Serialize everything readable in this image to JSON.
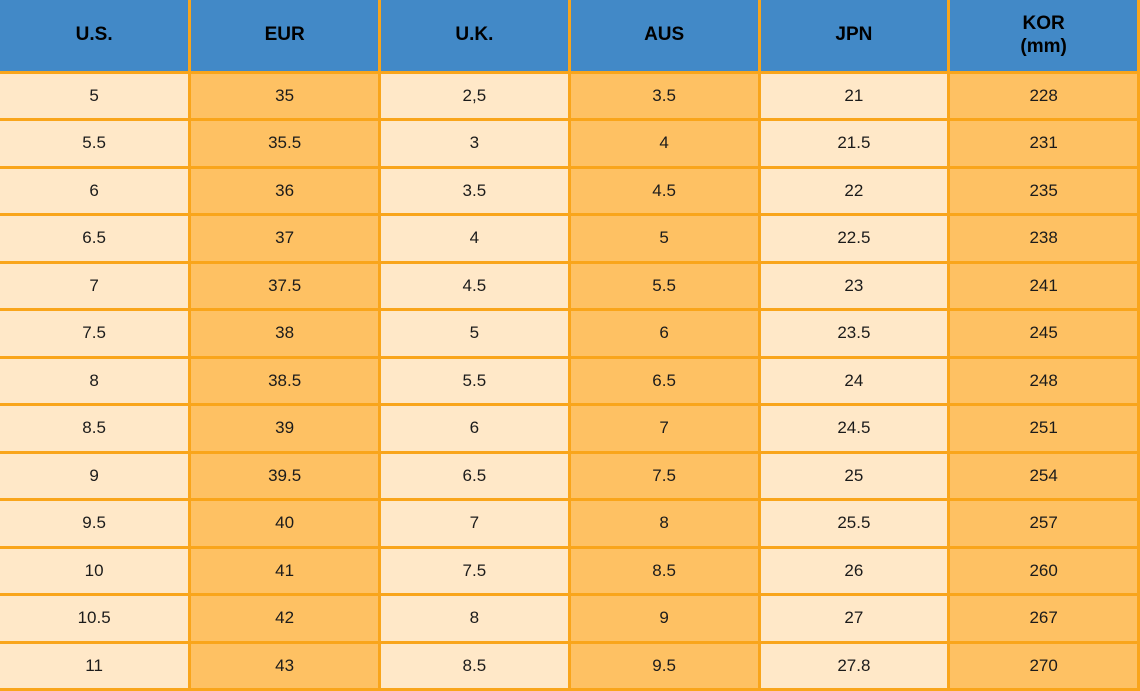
{
  "colors": {
    "header_bg": "#4289C7",
    "header_text": "#000000",
    "cell_light": "#FFE8C8",
    "cell_orange": "#FEC163",
    "grid_border": "#F9A51B",
    "cell_text": "#1B1B1B"
  },
  "chart_data": {
    "type": "table",
    "columns": [
      {
        "key": "us",
        "label": "U.S.",
        "sub": ""
      },
      {
        "key": "eur",
        "label": "EUR",
        "sub": ""
      },
      {
        "key": "uk",
        "label": "U.K.",
        "sub": ""
      },
      {
        "key": "aus",
        "label": "AUS",
        "sub": ""
      },
      {
        "key": "jpn",
        "label": "JPN",
        "sub": ""
      },
      {
        "key": "kor",
        "label": "KOR",
        "sub": "(mm)"
      }
    ],
    "column_styles": [
      "light",
      "orange",
      "light",
      "orange",
      "light",
      "orange"
    ],
    "rows": [
      [
        "5",
        "35",
        "2,5",
        "3.5",
        "21",
        "228"
      ],
      [
        "5.5",
        "35.5",
        "3",
        "4",
        "21.5",
        "231"
      ],
      [
        "6",
        "36",
        "3.5",
        "4.5",
        "22",
        "235"
      ],
      [
        "6.5",
        "37",
        "4",
        "5",
        "22.5",
        "238"
      ],
      [
        "7",
        "37.5",
        "4.5",
        "5.5",
        "23",
        "241"
      ],
      [
        "7.5",
        "38",
        "5",
        "6",
        "23.5",
        "245"
      ],
      [
        "8",
        "38.5",
        "5.5",
        "6.5",
        "24",
        "248"
      ],
      [
        "8.5",
        "39",
        "6",
        "7",
        "24.5",
        "251"
      ],
      [
        "9",
        "39.5",
        "6.5",
        "7.5",
        "25",
        "254"
      ],
      [
        "9.5",
        "40",
        "7",
        "8",
        "25.5",
        "257"
      ],
      [
        "10",
        "41",
        "7.5",
        "8.5",
        "26",
        "260"
      ],
      [
        "10.5",
        "42",
        "8",
        "9",
        "27",
        "267"
      ],
      [
        "11",
        "43",
        "8.5",
        "9.5",
        "27.8",
        "270"
      ]
    ]
  }
}
